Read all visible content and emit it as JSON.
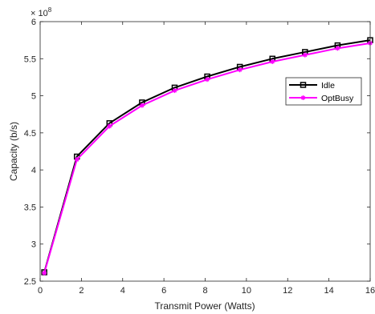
{
  "chart_data": {
    "type": "line",
    "xlabel": "Transmit Power (Watts)",
    "ylabel": "Capacity (b/s)",
    "y_exponent_label": "× 10",
    "y_exponent_power": "8",
    "xlim": [
      0,
      16
    ],
    "ylim": [
      2.5,
      6
    ],
    "x_ticks": [
      0,
      2,
      4,
      6,
      8,
      10,
      12,
      14,
      16
    ],
    "x_tick_labels": [
      "0",
      "2",
      "4",
      "6",
      "8",
      "10",
      "12",
      "14",
      "16"
    ],
    "y_ticks": [
      2.5,
      3,
      3.5,
      4,
      4.5,
      5,
      5.5,
      6
    ],
    "y_tick_labels": [
      "2.5",
      "3",
      "3.5",
      "4",
      "4.5",
      "5",
      "5.5",
      "6"
    ],
    "grid": false,
    "legend_position": "right",
    "x": [
      0.2,
      1.78,
      3.36,
      4.94,
      6.52,
      8.1,
      9.68,
      11.26,
      12.84,
      14.42,
      16
    ],
    "series": [
      {
        "name": "Idle",
        "color": "#000000",
        "marker": "square",
        "values": [
          2.62,
          4.18,
          4.63,
          4.91,
          5.11,
          5.26,
          5.39,
          5.5,
          5.59,
          5.68,
          5.75
        ]
      },
      {
        "name": "OptBusy",
        "color": "#ff00ff",
        "marker": "asterisk",
        "values": [
          2.61,
          4.14,
          4.59,
          4.87,
          5.07,
          5.22,
          5.35,
          5.46,
          5.55,
          5.64,
          5.71
        ]
      }
    ]
  }
}
